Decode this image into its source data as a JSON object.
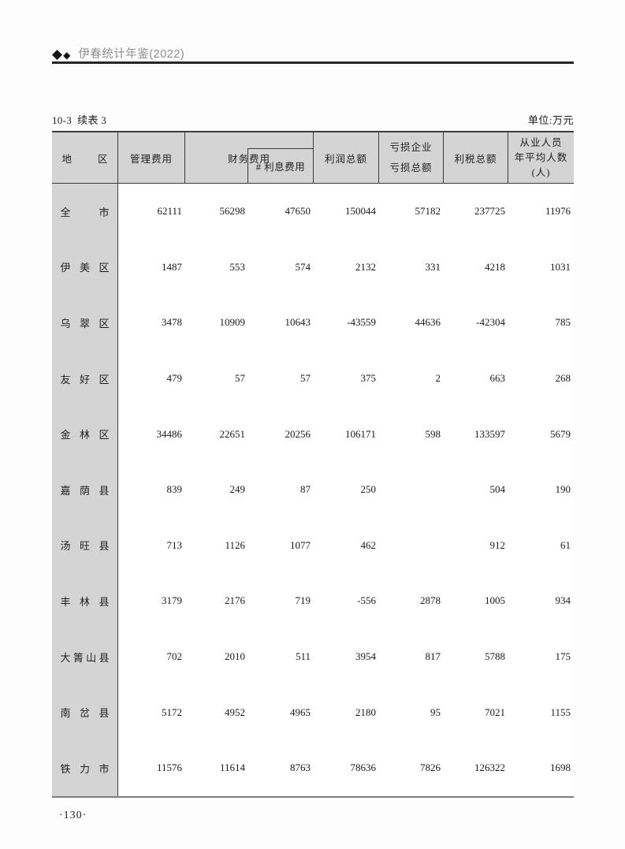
{
  "header": {
    "book_title": "伊春统计年鉴(2022)",
    "diamond_glyph": "◆"
  },
  "table": {
    "caption": "10-3  续表 3",
    "unit_label": "单位:万元",
    "columns": {
      "region": "地 区",
      "management_expense": "管理费用",
      "finance_expense": "财务费用",
      "interest_expense": "# 利息费用",
      "total_profit": "利润总额",
      "loss_total": [
        "亏损企业",
        "亏损总额"
      ],
      "profit_tax_total": "利税总额",
      "employees": [
        "从业人员",
        "年平均人数",
        "(人)"
      ]
    },
    "rows": [
      {
        "region": "全 市",
        "values": [
          "62111",
          "56298",
          "47650",
          "150044",
          "57182",
          "237725",
          "11976"
        ]
      },
      {
        "region": "伊 美 区",
        "values": [
          "1487",
          "553",
          "574",
          "2132",
          "331",
          "4218",
          "1031"
        ]
      },
      {
        "region": "乌 翠 区",
        "values": [
          "3478",
          "10909",
          "10643",
          "-43559",
          "44636",
          "-42304",
          "785"
        ]
      },
      {
        "region": "友 好 区",
        "values": [
          "479",
          "57",
          "57",
          "375",
          "2",
          "663",
          "268"
        ]
      },
      {
        "region": "金 林 区",
        "values": [
          "34486",
          "22651",
          "20256",
          "106171",
          "598",
          "133597",
          "5679"
        ]
      },
      {
        "region": "嘉 荫 县",
        "values": [
          "839",
          "249",
          "87",
          "250",
          "",
          "504",
          "190"
        ]
      },
      {
        "region": "汤 旺 县",
        "values": [
          "713",
          "1126",
          "1077",
          "462",
          "",
          "912",
          "61"
        ]
      },
      {
        "region": "丰 林 县",
        "values": [
          "3179",
          "2176",
          "719",
          "-556",
          "2878",
          "1005",
          "934"
        ]
      },
      {
        "region": "大箐山县",
        "values": [
          "702",
          "2010",
          "511",
          "3954",
          "817",
          "5788",
          "175"
        ]
      },
      {
        "region": "南 岔 县",
        "values": [
          "5172",
          "4952",
          "4965",
          "2180",
          "95",
          "7021",
          "1155"
        ]
      },
      {
        "region": "铁 力 市",
        "values": [
          "11576",
          "11614",
          "8763",
          "78636",
          "7826",
          "126322",
          "1698"
        ]
      }
    ]
  },
  "footer": {
    "page_number": "·130·"
  },
  "colors": {
    "header_fill": "#d4d4d4",
    "border_dark": "#3b3b3b",
    "bottom_border": "#7e7e7e",
    "title_gray": "#8d8d8d",
    "rule_dark": "#252525"
  }
}
